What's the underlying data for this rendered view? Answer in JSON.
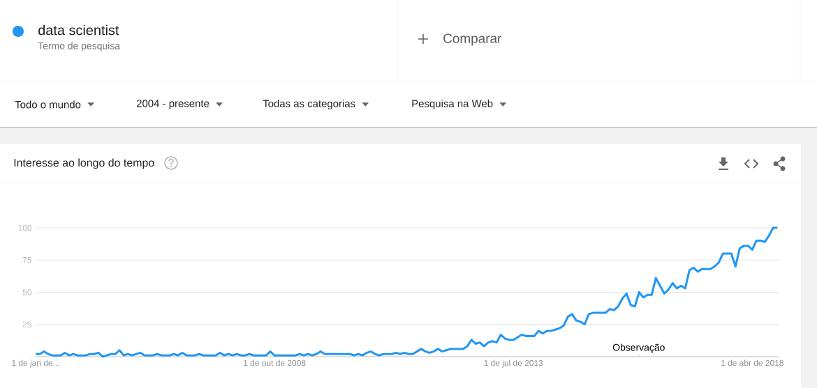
{
  "chart_data": {
    "type": "line",
    "title": "Interesse ao longo do tempo",
    "xlim": [
      "2004-01",
      "2018-10-15"
    ],
    "ylim": [
      0,
      100
    ],
    "xticks": [
      {
        "value": "2004-01-01",
        "label": "1 de jan de..."
      },
      {
        "value": "2008-10-01",
        "label": "1 de out de 2008"
      },
      {
        "value": "2013-07-01",
        "label": "1 de jul de 2013"
      },
      {
        "value": "2018-04-01",
        "label": "1 de abr de 2018"
      }
    ],
    "yticks": [
      {
        "value": 0,
        "label": null
      },
      25,
      50,
      75,
      100
    ],
    "grid": "y",
    "legend": "top left",
    "marker": "none",
    "line_style": "solid",
    "annotations": [
      "Termo de pesquisa",
      "Comparar",
      "Todo o mundo",
      "2004 - presente",
      "Todas as categorias",
      "Pesquisa na Web",
      "Observação"
    ],
    "series": [
      {
        "name": "data scientist",
        "color": "#2196f3",
        "x": [
          "2004-01",
          "2004-02",
          "2004-03",
          "2004-04",
          "2004-05",
          "2004-07",
          "2004-08",
          "2004-09",
          "2004-10",
          "2004-11",
          "2005-01",
          "2005-02",
          "2005-03",
          "2005-04",
          "2005-05",
          "2005-07",
          "2005-08",
          "2005-09",
          "2005-10",
          "2005-11",
          "2005-12",
          "2006-02",
          "2006-03",
          "2006-05",
          "2006-06",
          "2006-07",
          "2006-09",
          "2006-10",
          "2006-11",
          "2006-12",
          "2007-01",
          "2007-03",
          "2007-04",
          "2007-05",
          "2007-08",
          "2007-09",
          "2007-10",
          "2007-11",
          "2007-12",
          "2008-01",
          "2008-02",
          "2008-03",
          "2008-04",
          "2008-05",
          "2008-08",
          "2008-09",
          "2008-10",
          "2009-03",
          "2009-04",
          "2009-05",
          "2009-06",
          "2009-07",
          "2009-08",
          "2009-09",
          "2009-10",
          "2010-04",
          "2010-05",
          "2010-06",
          "2010-07",
          "2010-08",
          "2010-09",
          "2010-10",
          "2010-11",
          "2010-12",
          "2011-02",
          "2011-03",
          "2011-04",
          "2011-05",
          "2011-06",
          "2011-07",
          "2011-09",
          "2011-10",
          "2011-11",
          "2011-12",
          "2012-01",
          "2012-02",
          "2012-03",
          "2012-04",
          "2012-07",
          "2012-08",
          "2012-09",
          "2012-10",
          "2012-11",
          "2012-12",
          "2013-01",
          "2013-02",
          "2013-03",
          "2013-04",
          "2013-05",
          "2013-06",
          "2013-07",
          "2013-09",
          "2013-10",
          "2013-12",
          "2014-01",
          "2014-02",
          "2014-03",
          "2014-04",
          "2014-06",
          "2014-07",
          "2014-08",
          "2014-09",
          "2014-10",
          "2014-11",
          "2014-12",
          "2015-01",
          "2015-02",
          "2015-05",
          "2015-06",
          "2015-07",
          "2015-08",
          "2015-09",
          "2015-10",
          "2015-11",
          "2015-12",
          "2016-01",
          "2016-02",
          "2016-03",
          "2016-04",
          "2016-05",
          "2016-06",
          "2016-07",
          "2016-08",
          "2016-09",
          "2016-10",
          "2016-11",
          "2016-12",
          "2017-01",
          "2017-02",
          "2017-03",
          "2017-04",
          "2017-06",
          "2017-07",
          "2017-08",
          "2017-09",
          "2017-11",
          "2017-12",
          "2018-01",
          "2018-02",
          "2018-03",
          "2018-04",
          "2018-05",
          "2018-06",
          "2018-07",
          "2018-08",
          "2018-09",
          "2018-10"
        ],
        "values": [
          2,
          2,
          4,
          2,
          1,
          1,
          3,
          1,
          2,
          1,
          1,
          2,
          2,
          3,
          0,
          2,
          2,
          5,
          1,
          2,
          1,
          3,
          1,
          1,
          2,
          1,
          1,
          2,
          1,
          3,
          1,
          1,
          2,
          1,
          1,
          3,
          1,
          2,
          1,
          2,
          1,
          1,
          2,
          1,
          1,
          4,
          1,
          1,
          2,
          1,
          2,
          1,
          2,
          4,
          2,
          2,
          1,
          2,
          1,
          3,
          4,
          2,
          1,
          2,
          2,
          3,
          2,
          3,
          2,
          2,
          6,
          4,
          3,
          4,
          6,
          4,
          5,
          6,
          6,
          8,
          13,
          10,
          11,
          8,
          11,
          12,
          11,
          17,
          14,
          13,
          13,
          17,
          16,
          16,
          20,
          18,
          20,
          20,
          22,
          24,
          31,
          33,
          28,
          27,
          25,
          33,
          34,
          34,
          37,
          36,
          39,
          45,
          49,
          40,
          39,
          50,
          46,
          48,
          48,
          61,
          55,
          49,
          52,
          57,
          53,
          55,
          53,
          67,
          69,
          66,
          68,
          68,
          70,
          73,
          80,
          80,
          70,
          84,
          86,
          86,
          83,
          90,
          90,
          89,
          94,
          100,
          100
        ]
      }
    ]
  }
}
